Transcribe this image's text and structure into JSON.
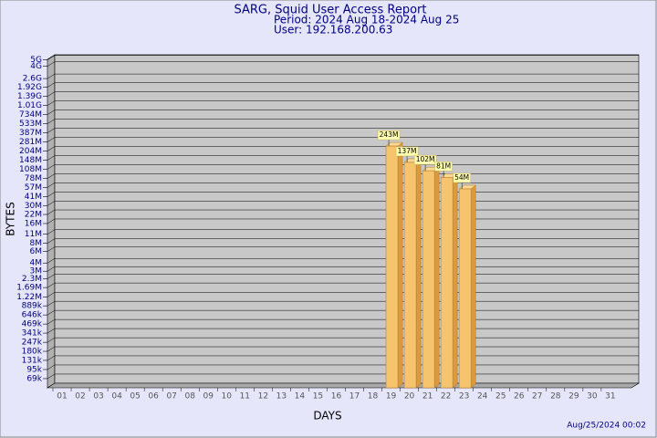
{
  "chart_data": {
    "type": "bar",
    "title": "SARG, Squid User Access Report",
    "subtitles": [
      "Period: 2024 Aug 18-2024 Aug 25",
      "User: 192.168.200.63"
    ],
    "x_label": "DAYS",
    "y_label": "BYTES",
    "footer": "Aug/25/2024 00:02",
    "log_scale": true,
    "grid": true,
    "color": "#f7c46e",
    "categories": [
      "01",
      "02",
      "03",
      "04",
      "05",
      "06",
      "07",
      "08",
      "09",
      "10",
      "11",
      "12",
      "13",
      "14",
      "15",
      "16",
      "17",
      "18",
      "19",
      "20",
      "21",
      "22",
      "23",
      "24",
      "25",
      "26",
      "27",
      "28",
      "29",
      "30",
      "31"
    ],
    "values": [
      null,
      null,
      null,
      null,
      null,
      null,
      null,
      null,
      null,
      null,
      null,
      null,
      null,
      null,
      null,
      null,
      null,
      null,
      243000000,
      137000000,
      102000000,
      81000000,
      54000000,
      null,
      null,
      null,
      null,
      null,
      null,
      null,
      null
    ],
    "value_labels": [
      null,
      null,
      null,
      null,
      null,
      null,
      null,
      null,
      null,
      null,
      null,
      null,
      null,
      null,
      null,
      null,
      null,
      null,
      "243M",
      "137M",
      "102M",
      "81M",
      "54M",
      null,
      null,
      null,
      null,
      null,
      null,
      null,
      null
    ],
    "ylim": [
      50000,
      6000000000
    ],
    "yticks": [
      {
        "value": 5000000000,
        "label": "5G"
      },
      {
        "value": 4000000000,
        "label": "4G"
      },
      {
        "value": 2600000000,
        "label": "2.6G"
      },
      {
        "value": 1920000000,
        "label": "1.92G"
      },
      {
        "value": 1390000000,
        "label": "1.39G"
      },
      {
        "value": 1010000000,
        "label": "1.01G"
      },
      {
        "value": 734000000,
        "label": "734M"
      },
      {
        "value": 533000000,
        "label": "533M"
      },
      {
        "value": 387000000,
        "label": "387M"
      },
      {
        "value": 281000000,
        "label": "281M"
      },
      {
        "value": 204000000,
        "label": "204M"
      },
      {
        "value": 148000000,
        "label": "148M"
      },
      {
        "value": 108000000,
        "label": "108M"
      },
      {
        "value": 78000000,
        "label": "78M"
      },
      {
        "value": 57000000,
        "label": "57M"
      },
      {
        "value": 41000000,
        "label": "41M"
      },
      {
        "value": 30000000,
        "label": "30M"
      },
      {
        "value": 22000000,
        "label": "22M"
      },
      {
        "value": 16000000,
        "label": "16M"
      },
      {
        "value": 11000000,
        "label": "11M"
      },
      {
        "value": 8000000,
        "label": "8M"
      },
      {
        "value": 6000000,
        "label": "6M"
      },
      {
        "value": 4000000,
        "label": "4M"
      },
      {
        "value": 3000000,
        "label": "3M"
      },
      {
        "value": 2300000,
        "label": "2.3M"
      },
      {
        "value": 1690000,
        "label": "1.69M"
      },
      {
        "value": 1220000,
        "label": "1.22M"
      },
      {
        "value": 889000,
        "label": "889k"
      },
      {
        "value": 646000,
        "label": "646k"
      },
      {
        "value": 469000,
        "label": "469k"
      },
      {
        "value": 341000,
        "label": "341k"
      },
      {
        "value": 247000,
        "label": "247k"
      },
      {
        "value": 180000,
        "label": "180k"
      },
      {
        "value": 131000,
        "label": "131k"
      },
      {
        "value": 95000,
        "label": "95k"
      },
      {
        "value": 69000,
        "label": "69k"
      }
    ]
  }
}
